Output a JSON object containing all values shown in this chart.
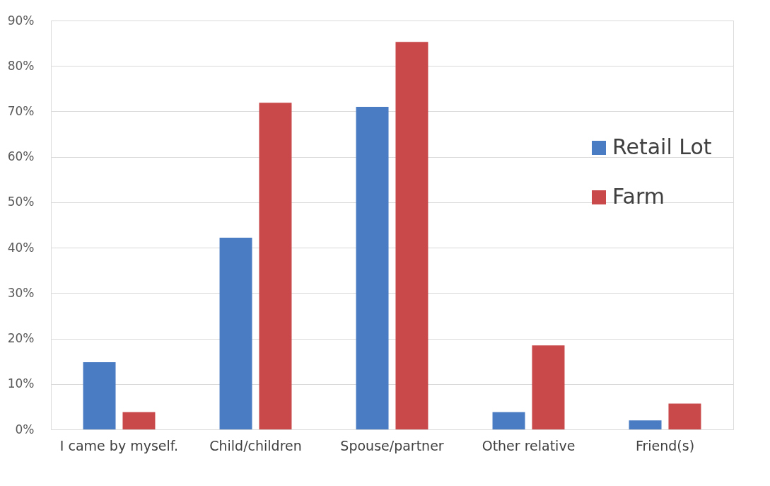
{
  "chart_data": {
    "type": "bar",
    "categories": [
      "I came by myself.",
      "Child/children",
      "Spouse/partner",
      "Other relative",
      "Friend(s)"
    ],
    "series": [
      {
        "name": "Retail Lot",
        "color": "#4a7cc4",
        "values": [
          14.8,
          42.2,
          71.0,
          3.8,
          2.0
        ]
      },
      {
        "name": "Farm",
        "color": "#c9494a",
        "values": [
          3.8,
          71.9,
          85.3,
          18.5,
          5.7
        ]
      }
    ],
    "ylim": [
      0,
      90
    ],
    "yticks": [
      {
        "value": 0,
        "label": "0%"
      },
      {
        "value": 10,
        "label": "10%"
      },
      {
        "value": 20,
        "label": "20%"
      },
      {
        "value": 30,
        "label": "30%"
      },
      {
        "value": 40,
        "label": "40%"
      },
      {
        "value": 50,
        "label": "50%"
      },
      {
        "value": 60,
        "label": "60%"
      },
      {
        "value": 70,
        "label": "70%"
      },
      {
        "value": 80,
        "label": "80%"
      },
      {
        "value": 90,
        "label": "90%"
      }
    ],
    "grid": "y",
    "legend": "right"
  }
}
